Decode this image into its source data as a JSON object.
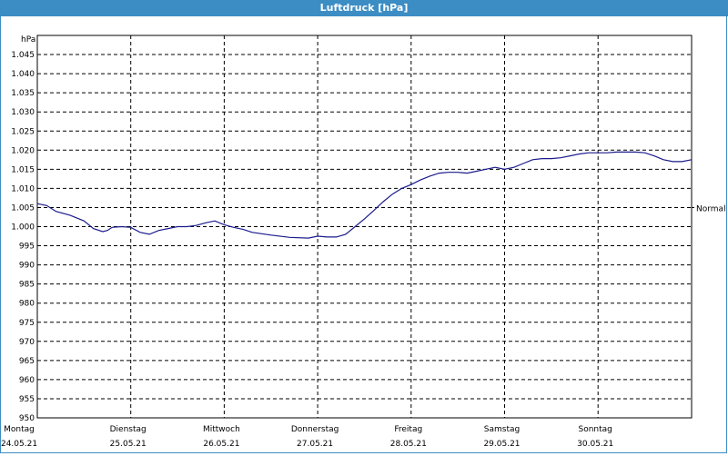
{
  "window": {
    "title": "Luftdruck [hPa]"
  },
  "colors": {
    "titlebar": "#3c8dc4",
    "line": "#1a1a8c",
    "grid": "#000000"
  },
  "chart_data": {
    "type": "line",
    "title": "Luftdruck [hPa]",
    "ylabel": "hPa",
    "ylim": [
      950,
      1050
    ],
    "yticks": [
      "1.045",
      "1.040",
      "1.035",
      "1.030",
      "1.025",
      "1.020",
      "1.015",
      "1.010",
      "1.005",
      "1.000",
      "995",
      "990",
      "985",
      "980",
      "975",
      "970",
      "965",
      "960",
      "955",
      "950"
    ],
    "grid": true,
    "xlim": [
      0,
      7
    ],
    "x_ticks": [
      {
        "day": "Montag",
        "date": "24.05.21"
      },
      {
        "day": "Dienstag",
        "date": "25.05.21"
      },
      {
        "day": "Mittwoch",
        "date": "26.05.21"
      },
      {
        "day": "Donnerstag",
        "date": "27.05.21"
      },
      {
        "day": "Freitag",
        "date": "28.05.21"
      },
      {
        "day": "Samstag",
        "date": "29.05.21"
      },
      {
        "day": "Sonntag",
        "date": "30.05.21"
      }
    ],
    "reference": {
      "label": "Normal",
      "value": 1005
    },
    "series": [
      {
        "x": [
          0,
          0.1,
          0.2,
          0.35,
          0.5,
          0.6,
          0.7,
          0.75,
          0.8,
          0.9,
          1.0,
          1.1,
          1.2,
          1.3,
          1.4,
          1.5,
          1.6,
          1.7,
          1.8,
          1.9,
          2.0,
          2.1,
          2.2,
          2.3,
          2.5,
          2.7,
          2.9,
          3.0,
          3.1,
          3.2,
          3.3,
          3.4,
          3.5,
          3.6,
          3.7,
          3.8,
          3.9,
          4.0,
          4.1,
          4.2,
          4.3,
          4.4,
          4.5,
          4.6,
          4.7,
          4.8,
          4.9,
          5.0,
          5.1,
          5.2,
          5.3,
          5.4,
          5.5,
          5.6,
          5.7,
          5.8,
          5.9,
          6.0,
          6.1,
          6.2,
          6.3,
          6.4,
          6.5,
          6.6,
          6.7,
          6.8,
          6.9,
          7.0
        ],
        "values": [
          1006,
          1005.5,
          1004,
          1003,
          1001.5,
          999.5,
          998.7,
          999,
          999.8,
          1000,
          999.8,
          998.5,
          998,
          999,
          999.5,
          1000,
          1000,
          1000.3,
          1001,
          1001.5,
          1000.5,
          999.8,
          999.3,
          998.5,
          997.8,
          997.2,
          997,
          997.5,
          997.3,
          997.3,
          998,
          1000,
          1002,
          1004.2,
          1006.5,
          1008.5,
          1010,
          1011,
          1012.2,
          1013.2,
          1014,
          1014.2,
          1014.2,
          1014,
          1014.5,
          1015,
          1015.5,
          1015,
          1015.5,
          1016.5,
          1017.5,
          1017.8,
          1017.8,
          1018,
          1018.5,
          1019,
          1019.3,
          1019.3,
          1019.3,
          1019.5,
          1019.5,
          1019.5,
          1019.3,
          1018.5,
          1017.5,
          1017,
          1017,
          1017.5
        ]
      }
    ]
  }
}
